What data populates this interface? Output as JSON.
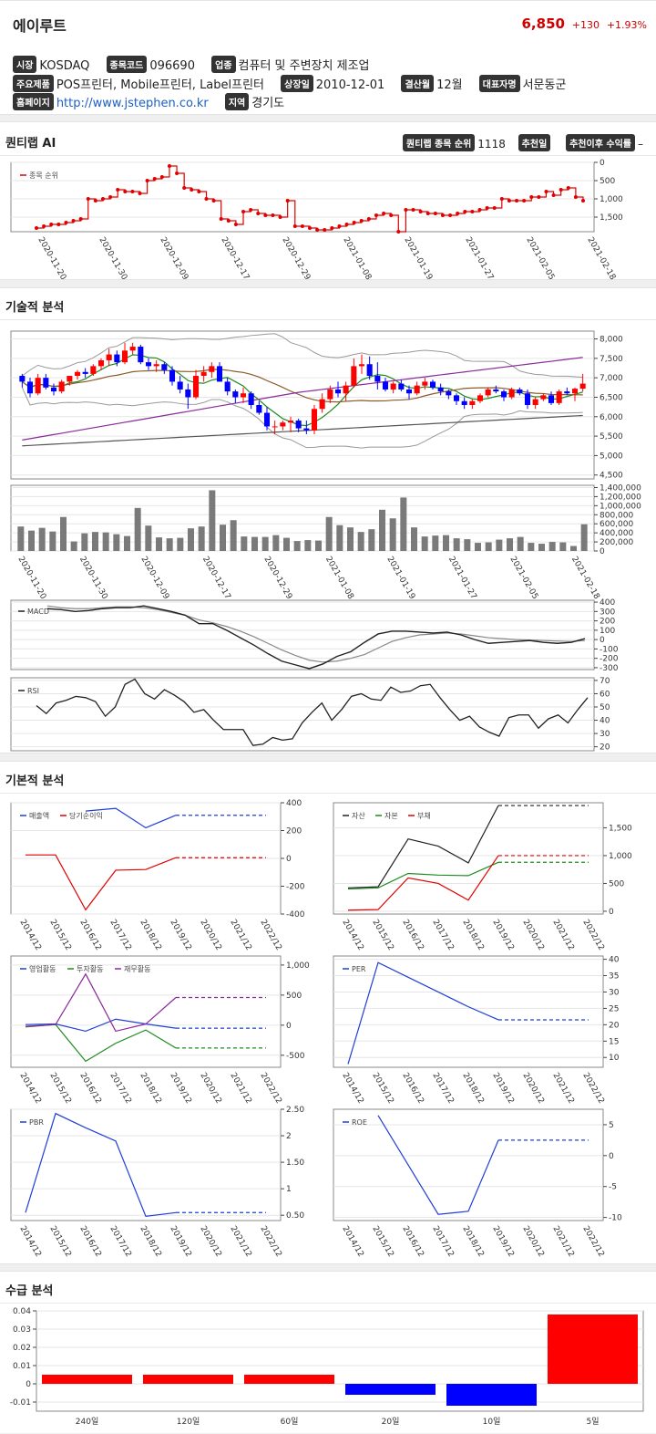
{
  "header": {
    "name": "에이루트",
    "price": "6,850",
    "change": "+130",
    "change_pct": "+1.93%"
  },
  "info": {
    "market_label": "시장",
    "market": "KOSDAQ",
    "code_label": "종목코드",
    "code": "096690",
    "industry_label": "업종",
    "industry": "컴퓨터 및 주변장치 제조업",
    "product_label": "주요제품",
    "product": "POS프린터, Mobile프린터, Label프린터",
    "listing_label": "상장일",
    "listing": "2010-12-01",
    "fiscal_label": "결산월",
    "fiscal": "12월",
    "ceo_label": "대표자명",
    "ceo": "서문동군",
    "homepage_label": "홈페이지",
    "homepage": "http://www.jstephen.co.kr",
    "region_label": "지역",
    "region": "경기도"
  },
  "quant": {
    "title": "퀀티랩 AI",
    "rank_label": "퀀티랩 종목 순위",
    "rank": "1118",
    "rec_date_label": "추천일",
    "rec_return_label": "추천이후 수익률",
    "rec_return": "–"
  },
  "sections": {
    "technical": "기술적 분석",
    "fundamental": "기본적 분석",
    "supply": "수급 분석"
  },
  "colors": {
    "up": "#ff0000",
    "down": "#0000ff",
    "red": "#e00000",
    "blue": "#1f3fd6",
    "green": "#1c8c1c",
    "purple": "#8b2a9b",
    "black": "#222222"
  },
  "chart_data": [
    {
      "id": "rank",
      "type": "line",
      "legend": [
        "종목 순위"
      ],
      "y_ticks": [
        "0",
        "500",
        "1,000",
        "1,500"
      ],
      "ylim": [
        0,
        1900
      ],
      "y_reversed": true,
      "x_ticks": [
        "2020-11-20",
        "2020-11-30",
        "2020-12-09",
        "2020-12-17",
        "2020-12-29",
        "2021-01-08",
        "2021-01-19",
        "2021-01-27",
        "2021-02-05",
        "2021-02-18"
      ],
      "values": [
        1800,
        1750,
        1700,
        1700,
        1650,
        1600,
        1550,
        1000,
        1050,
        1000,
        950,
        750,
        800,
        800,
        850,
        500,
        450,
        400,
        100,
        300,
        700,
        750,
        800,
        1000,
        1050,
        1550,
        1600,
        1700,
        1350,
        1300,
        1400,
        1450,
        1450,
        1500,
        1050,
        1750,
        1750,
        1800,
        1850,
        1850,
        1800,
        1750,
        1700,
        1650,
        1600,
        1550,
        1450,
        1400,
        1450,
        1900,
        1300,
        1300,
        1350,
        1400,
        1400,
        1450,
        1450,
        1400,
        1350,
        1350,
        1300,
        1250,
        1250,
        1000,
        1050,
        1050,
        1050,
        950,
        950,
        800,
        900,
        750,
        700,
        950,
        1050
      ]
    },
    {
      "id": "price",
      "type": "candlestick",
      "y_ticks": [
        "4,500",
        "5,000",
        "5,500",
        "6,000",
        "6,500",
        "7,000",
        "7,500",
        "8,000"
      ],
      "ylim": [
        4400,
        8200
      ],
      "candles": [
        [
          7050,
          7100,
          6750,
          6900
        ],
        [
          6900,
          7000,
          6500,
          6600
        ],
        [
          6600,
          7100,
          6550,
          7000
        ],
        [
          7000,
          7100,
          6700,
          6750
        ],
        [
          6750,
          6850,
          6550,
          6650
        ],
        [
          6650,
          6950,
          6600,
          6900
        ],
        [
          6900,
          7050,
          6800,
          7050
        ],
        [
          7050,
          7200,
          6950,
          7150
        ],
        [
          7150,
          7250,
          7000,
          7100
        ],
        [
          7100,
          7350,
          7050,
          7300
        ],
        [
          7300,
          7500,
          7200,
          7450
        ],
        [
          7450,
          7750,
          7300,
          7600
        ],
        [
          7600,
          7700,
          7300,
          7400
        ],
        [
          7400,
          7900,
          7350,
          7700
        ],
        [
          7700,
          7900,
          7600,
          7800
        ],
        [
          7800,
          7850,
          7350,
          7400
        ],
        [
          7400,
          7500,
          7200,
          7300
        ],
        [
          7300,
          7450,
          7150,
          7350
        ],
        [
          7350,
          7400,
          7100,
          7200
        ],
        [
          7200,
          7300,
          6800,
          6900
        ],
        [
          6900,
          7050,
          6600,
          6700
        ],
        [
          6700,
          6850,
          6200,
          6500
        ],
        [
          6500,
          7200,
          6450,
          7050
        ],
        [
          7050,
          7300,
          6900,
          7150
        ],
        [
          7150,
          7400,
          7000,
          7300
        ],
        [
          7300,
          7400,
          6900,
          6900
        ],
        [
          6900,
          7000,
          6550,
          6650
        ],
        [
          6650,
          6700,
          6350,
          6500
        ],
        [
          6500,
          6750,
          6350,
          6600
        ],
        [
          6600,
          6650,
          6200,
          6300
        ],
        [
          6300,
          6400,
          6050,
          6100
        ],
        [
          6100,
          6250,
          5650,
          5750
        ],
        [
          5750,
          5900,
          5550,
          5750
        ],
        [
          5750,
          5900,
          5650,
          5850
        ],
        [
          5850,
          6000,
          5600,
          5900
        ],
        [
          5900,
          5950,
          5600,
          5700
        ],
        [
          5700,
          5900,
          5550,
          5650
        ],
        [
          5650,
          6300,
          5550,
          6200
        ],
        [
          6200,
          6600,
          6100,
          6450
        ],
        [
          6450,
          6800,
          6350,
          6700
        ],
        [
          6700,
          6900,
          6500,
          6600
        ],
        [
          6600,
          6900,
          6400,
          6800
        ],
        [
          6800,
          7500,
          6750,
          7300
        ],
        [
          7300,
          7600,
          7100,
          7350
        ],
        [
          7350,
          7550,
          6950,
          7050
        ],
        [
          7050,
          7400,
          6700,
          6900
        ],
        [
          6900,
          7000,
          6650,
          6700
        ],
        [
          6700,
          6900,
          6600,
          6850
        ],
        [
          6850,
          6950,
          6650,
          6700
        ],
        [
          6700,
          6800,
          6450,
          6600
        ],
        [
          6600,
          6900,
          6550,
          6800
        ],
        [
          6800,
          7000,
          6700,
          6900
        ],
        [
          6900,
          6950,
          6700,
          6750
        ],
        [
          6750,
          6850,
          6550,
          6650
        ],
        [
          6650,
          6700,
          6450,
          6550
        ],
        [
          6550,
          6600,
          6300,
          6400
        ],
        [
          6400,
          6500,
          6200,
          6300
        ],
        [
          6300,
          6450,
          6200,
          6400
        ],
        [
          6400,
          6600,
          6350,
          6550
        ],
        [
          6550,
          6750,
          6500,
          6700
        ],
        [
          6700,
          6800,
          6600,
          6650
        ],
        [
          6650,
          6700,
          6400,
          6500
        ],
        [
          6500,
          6750,
          6450,
          6700
        ],
        [
          6700,
          6750,
          6550,
          6600
        ],
        [
          6600,
          6700,
          6200,
          6300
        ],
        [
          6300,
          6500,
          6200,
          6450
        ],
        [
          6450,
          6600,
          6400,
          6550
        ],
        [
          6550,
          6650,
          6300,
          6350
        ],
        [
          6350,
          6700,
          6300,
          6650
        ],
        [
          6650,
          6750,
          6550,
          6600
        ],
        [
          6600,
          6750,
          6400,
          6720
        ],
        [
          6720,
          7100,
          6650,
          6850
        ]
      ]
    },
    {
      "id": "volume",
      "type": "bar",
      "y_ticks": [
        "0",
        "200,000",
        "400,000",
        "600,000",
        "800,000",
        "1,000,000",
        "1,200,000",
        "1,400,000"
      ],
      "ylim": [
        0,
        1450000
      ],
      "x_ticks": [
        "2020-11-20",
        "2020-11-30",
        "2020-12-09",
        "2020-12-17",
        "2020-12-29",
        "2021-01-08",
        "2021-01-19",
        "2021-01-27",
        "2021-02-05",
        "2021-02-18"
      ],
      "values": [
        540000,
        450000,
        510000,
        430000,
        750000,
        210000,
        390000,
        420000,
        410000,
        370000,
        330000,
        950000,
        560000,
        300000,
        280000,
        290000,
        500000,
        540000,
        1340000,
        580000,
        680000,
        320000,
        310000,
        310000,
        350000,
        290000,
        220000,
        240000,
        230000,
        750000,
        570000,
        520000,
        420000,
        480000,
        910000,
        720000,
        1180000,
        520000,
        320000,
        340000,
        350000,
        280000,
        260000,
        180000,
        190000,
        250000,
        280000,
        310000,
        180000,
        160000,
        200000,
        190000,
        110000,
        590000
      ]
    },
    {
      "id": "macd",
      "type": "line",
      "legend": [
        "MACD"
      ],
      "y_ticks": [
        "400",
        "300",
        "200",
        "100",
        "0",
        "-100",
        "-200",
        "-300"
      ],
      "ylim": [
        -320,
        420
      ]
    },
    {
      "id": "rsi",
      "type": "line",
      "legend": [
        "RSI"
      ],
      "y_ticks": [
        "70",
        "60",
        "50",
        "40",
        "30",
        "20"
      ],
      "ylim": [
        17,
        72
      ],
      "values": [
        51,
        45,
        53,
        55,
        58,
        57,
        54,
        43,
        50,
        67,
        71,
        60,
        56,
        63,
        59,
        54,
        46,
        48,
        40,
        33,
        33,
        33,
        21,
        22,
        27,
        25,
        26,
        38,
        46,
        53,
        40,
        48,
        58,
        60,
        56,
        55,
        65,
        61,
        62,
        66,
        67,
        57,
        48,
        40,
        43,
        35,
        31,
        28,
        42,
        44,
        44,
        34,
        41,
        44,
        38,
        48,
        57
      ]
    },
    {
      "id": "sales",
      "type": "line",
      "legend": [
        "매출액",
        "당기순이익"
      ],
      "y_ticks": [
        "400",
        "200",
        "0",
        "-200",
        "-400"
      ],
      "ylim": [
        -400,
        400
      ],
      "x": [
        "2014/12",
        "2015/12",
        "2016/12",
        "2017/12",
        "2018/12",
        "2019/12",
        "2020/12",
        "2021/12",
        "2022/12"
      ],
      "series": [
        {
          "name": "매출액",
          "values": [
            null,
            null,
            340,
            360,
            220,
            310,
            310,
            310,
            310
          ]
        },
        {
          "name": "당기순이익",
          "values": [
            25,
            25,
            -370,
            -85,
            -80,
            5,
            5,
            5,
            5
          ]
        }
      ]
    },
    {
      "id": "balance",
      "type": "line",
      "legend": [
        "자산",
        "자본",
        "부채"
      ],
      "y_ticks": [
        "1,500",
        "1,000",
        "500",
        "0"
      ],
      "ylim": [
        -50,
        1950
      ],
      "x": [
        "2014/12",
        "2015/12",
        "2016/12",
        "2017/12",
        "2018/12",
        "2019/12",
        "2020/12",
        "2021/12",
        "2022/12"
      ],
      "series": [
        {
          "name": "자산",
          "values": [
            420,
            440,
            1300,
            1170,
            870,
            1900,
            1900,
            1900,
            1900
          ]
        },
        {
          "name": "자본",
          "values": [
            400,
            420,
            680,
            650,
            640,
            880,
            880,
            880,
            880
          ]
        },
        {
          "name": "부채",
          "values": [
            20,
            30,
            600,
            500,
            200,
            1000,
            1000,
            1000,
            1000
          ]
        }
      ]
    },
    {
      "id": "cashflow",
      "type": "line",
      "legend": [
        "영업활동",
        "투자활동",
        "재무활동"
      ],
      "y_ticks": [
        "1,000",
        "500",
        "0",
        "-500"
      ],
      "ylim": [
        -700,
        1150
      ],
      "x": [
        "2014/12",
        "2015/12",
        "2016/12",
        "2017/12",
        "2018/12",
        "2019/12",
        "2020/12",
        "2021/12",
        "2022/12"
      ],
      "series": [
        {
          "name": "영업활동",
          "values": [
            10,
            20,
            -100,
            100,
            20,
            -50,
            -50,
            -50,
            -50
          ]
        },
        {
          "name": "투자활동",
          "values": [
            -30,
            10,
            -600,
            -300,
            -80,
            -380,
            -380,
            -380,
            -380
          ]
        },
        {
          "name": "재무활동",
          "values": [
            -20,
            10,
            850,
            -100,
            20,
            460,
            460,
            460,
            460
          ]
        }
      ]
    },
    {
      "id": "per",
      "type": "line",
      "legend": [
        "PER"
      ],
      "y_ticks": [
        "40",
        "35",
        "30",
        "25",
        "20",
        "15",
        "10"
      ],
      "ylim": [
        7,
        41
      ],
      "x": [
        "2014/12",
        "2015/12",
        "2016/12",
        "2017/12",
        "2018/12",
        "2019/12",
        "2020/12",
        "2021/12",
        "2022/12"
      ],
      "series": [
        {
          "name": "PER",
          "values": [
            8,
            39,
            34.5,
            30,
            25.5,
            21.5,
            21.5,
            21.5,
            21.5
          ]
        }
      ]
    },
    {
      "id": "pbr",
      "type": "line",
      "legend": [
        "PBR"
      ],
      "y_ticks": [
        "2.50",
        "2",
        "1.50",
        "1",
        "0.50"
      ],
      "ylim": [
        0.4,
        2.5
      ],
      "x": [
        "2014/12",
        "2015/12",
        "2016/12",
        "2017/12",
        "2018/12",
        "2019/12",
        "2020/12",
        "2021/12",
        "2022/12"
      ],
      "series": [
        {
          "name": "PBR",
          "values": [
            0.55,
            2.42,
            2.15,
            1.9,
            0.48,
            0.55,
            0.55,
            0.55,
            0.55
          ]
        }
      ]
    },
    {
      "id": "roe",
      "type": "line",
      "legend": [
        "ROE"
      ],
      "y_ticks": [
        "5",
        "0",
        "-5",
        "-10"
      ],
      "ylim": [
        -10.5,
        7.5
      ],
      "x": [
        "2014/12",
        "2015/12",
        "2016/12",
        "2017/12",
        "2018/12",
        "2019/12",
        "2020/12",
        "2021/12",
        "2022/12"
      ],
      "series": [
        {
          "name": "ROE",
          "values": [
            null,
            6.5,
            null,
            -9.5,
            -9,
            2.5,
            2.5,
            2.5,
            2.5
          ]
        }
      ]
    },
    {
      "id": "supply",
      "type": "bar",
      "categories": [
        "240일",
        "120일",
        "60일",
        "20일",
        "10일",
        "5일"
      ],
      "values": [
        0.005,
        0.005,
        0.005,
        -0.006,
        -0.012,
        0.038
      ],
      "y_ticks": [
        "0.04",
        "0.03",
        "0.02",
        "0.01",
        "0",
        "-0.01"
      ],
      "ylim": [
        -0.015,
        0.04
      ]
    }
  ]
}
